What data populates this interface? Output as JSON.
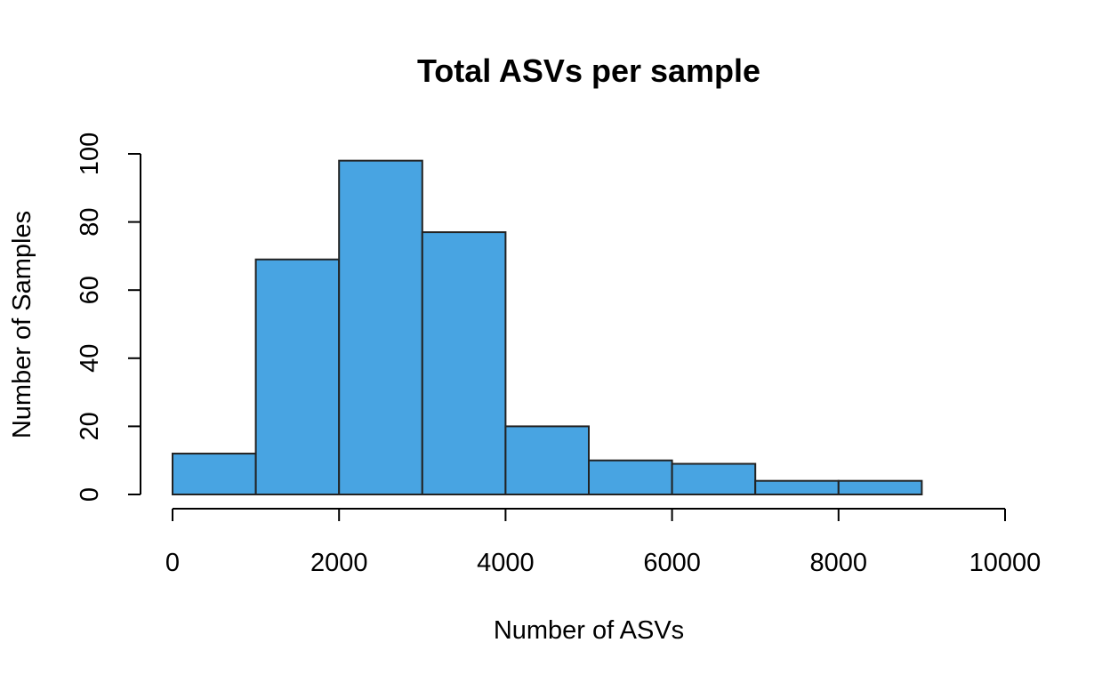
{
  "chart_data": {
    "type": "bar",
    "title": "Total ASVs per sample",
    "xlabel": "Number of ASVs",
    "ylabel": "Number of Samples",
    "bins": [
      {
        "x0": 0,
        "x1": 1000,
        "count": 12
      },
      {
        "x0": 1000,
        "x1": 2000,
        "count": 69
      },
      {
        "x0": 2000,
        "x1": 3000,
        "count": 98
      },
      {
        "x0": 3000,
        "x1": 4000,
        "count": 77
      },
      {
        "x0": 4000,
        "x1": 5000,
        "count": 20
      },
      {
        "x0": 5000,
        "x1": 6000,
        "count": 10
      },
      {
        "x0": 6000,
        "x1": 7000,
        "count": 9
      },
      {
        "x0": 7000,
        "x1": 8000,
        "count": 4
      },
      {
        "x0": 8000,
        "x1": 9000,
        "count": 4
      }
    ],
    "xlim": [
      0,
      10000
    ],
    "ylim": [
      0,
      100
    ],
    "x_ticks": [
      0,
      2000,
      4000,
      6000,
      8000,
      10000
    ],
    "y_ticks": [
      0,
      20,
      40,
      60,
      80,
      100
    ],
    "x_tick_labels": [
      "0",
      "2000",
      "4000",
      "6000",
      "8000",
      "10000"
    ],
    "y_tick_labels": [
      "0",
      "20",
      "40",
      "60",
      "80",
      "100"
    ],
    "bar_color": "#48A4E2",
    "bar_edge_color": "#222222",
    "grid": false,
    "legend": "none"
  }
}
